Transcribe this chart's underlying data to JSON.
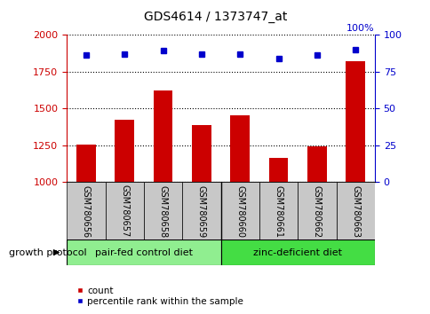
{
  "title": "GDS4614 / 1373747_at",
  "samples": [
    "GSM780656",
    "GSM780657",
    "GSM780658",
    "GSM780659",
    "GSM780660",
    "GSM780661",
    "GSM780662",
    "GSM780663"
  ],
  "counts": [
    1255,
    1420,
    1620,
    1385,
    1455,
    1165,
    1240,
    1820
  ],
  "percentiles": [
    86,
    87,
    89,
    87,
    87,
    84,
    86,
    90
  ],
  "ylim_left": [
    1000,
    2000
  ],
  "ylim_right": [
    0,
    100
  ],
  "yticks_left": [
    1000,
    1250,
    1500,
    1750,
    2000
  ],
  "yticks_right": [
    0,
    25,
    50,
    75,
    100
  ],
  "groups": [
    {
      "label": "pair-fed control diet",
      "start": 0,
      "end": 4,
      "color": "#90EE90"
    },
    {
      "label": "zinc-deficient diet",
      "start": 4,
      "end": 8,
      "color": "#44DD44"
    }
  ],
  "group_label": "growth protocol",
  "bar_color": "#CC0000",
  "dot_color": "#0000CC",
  "bar_width": 0.5,
  "legend_count_label": "count",
  "legend_percentile_label": "percentile rank within the sample",
  "title_color": "#000000",
  "left_axis_color": "#CC0000",
  "right_axis_color": "#0000CC",
  "label_bg_color": "#C8C8C8",
  "grid_color": "#000000"
}
